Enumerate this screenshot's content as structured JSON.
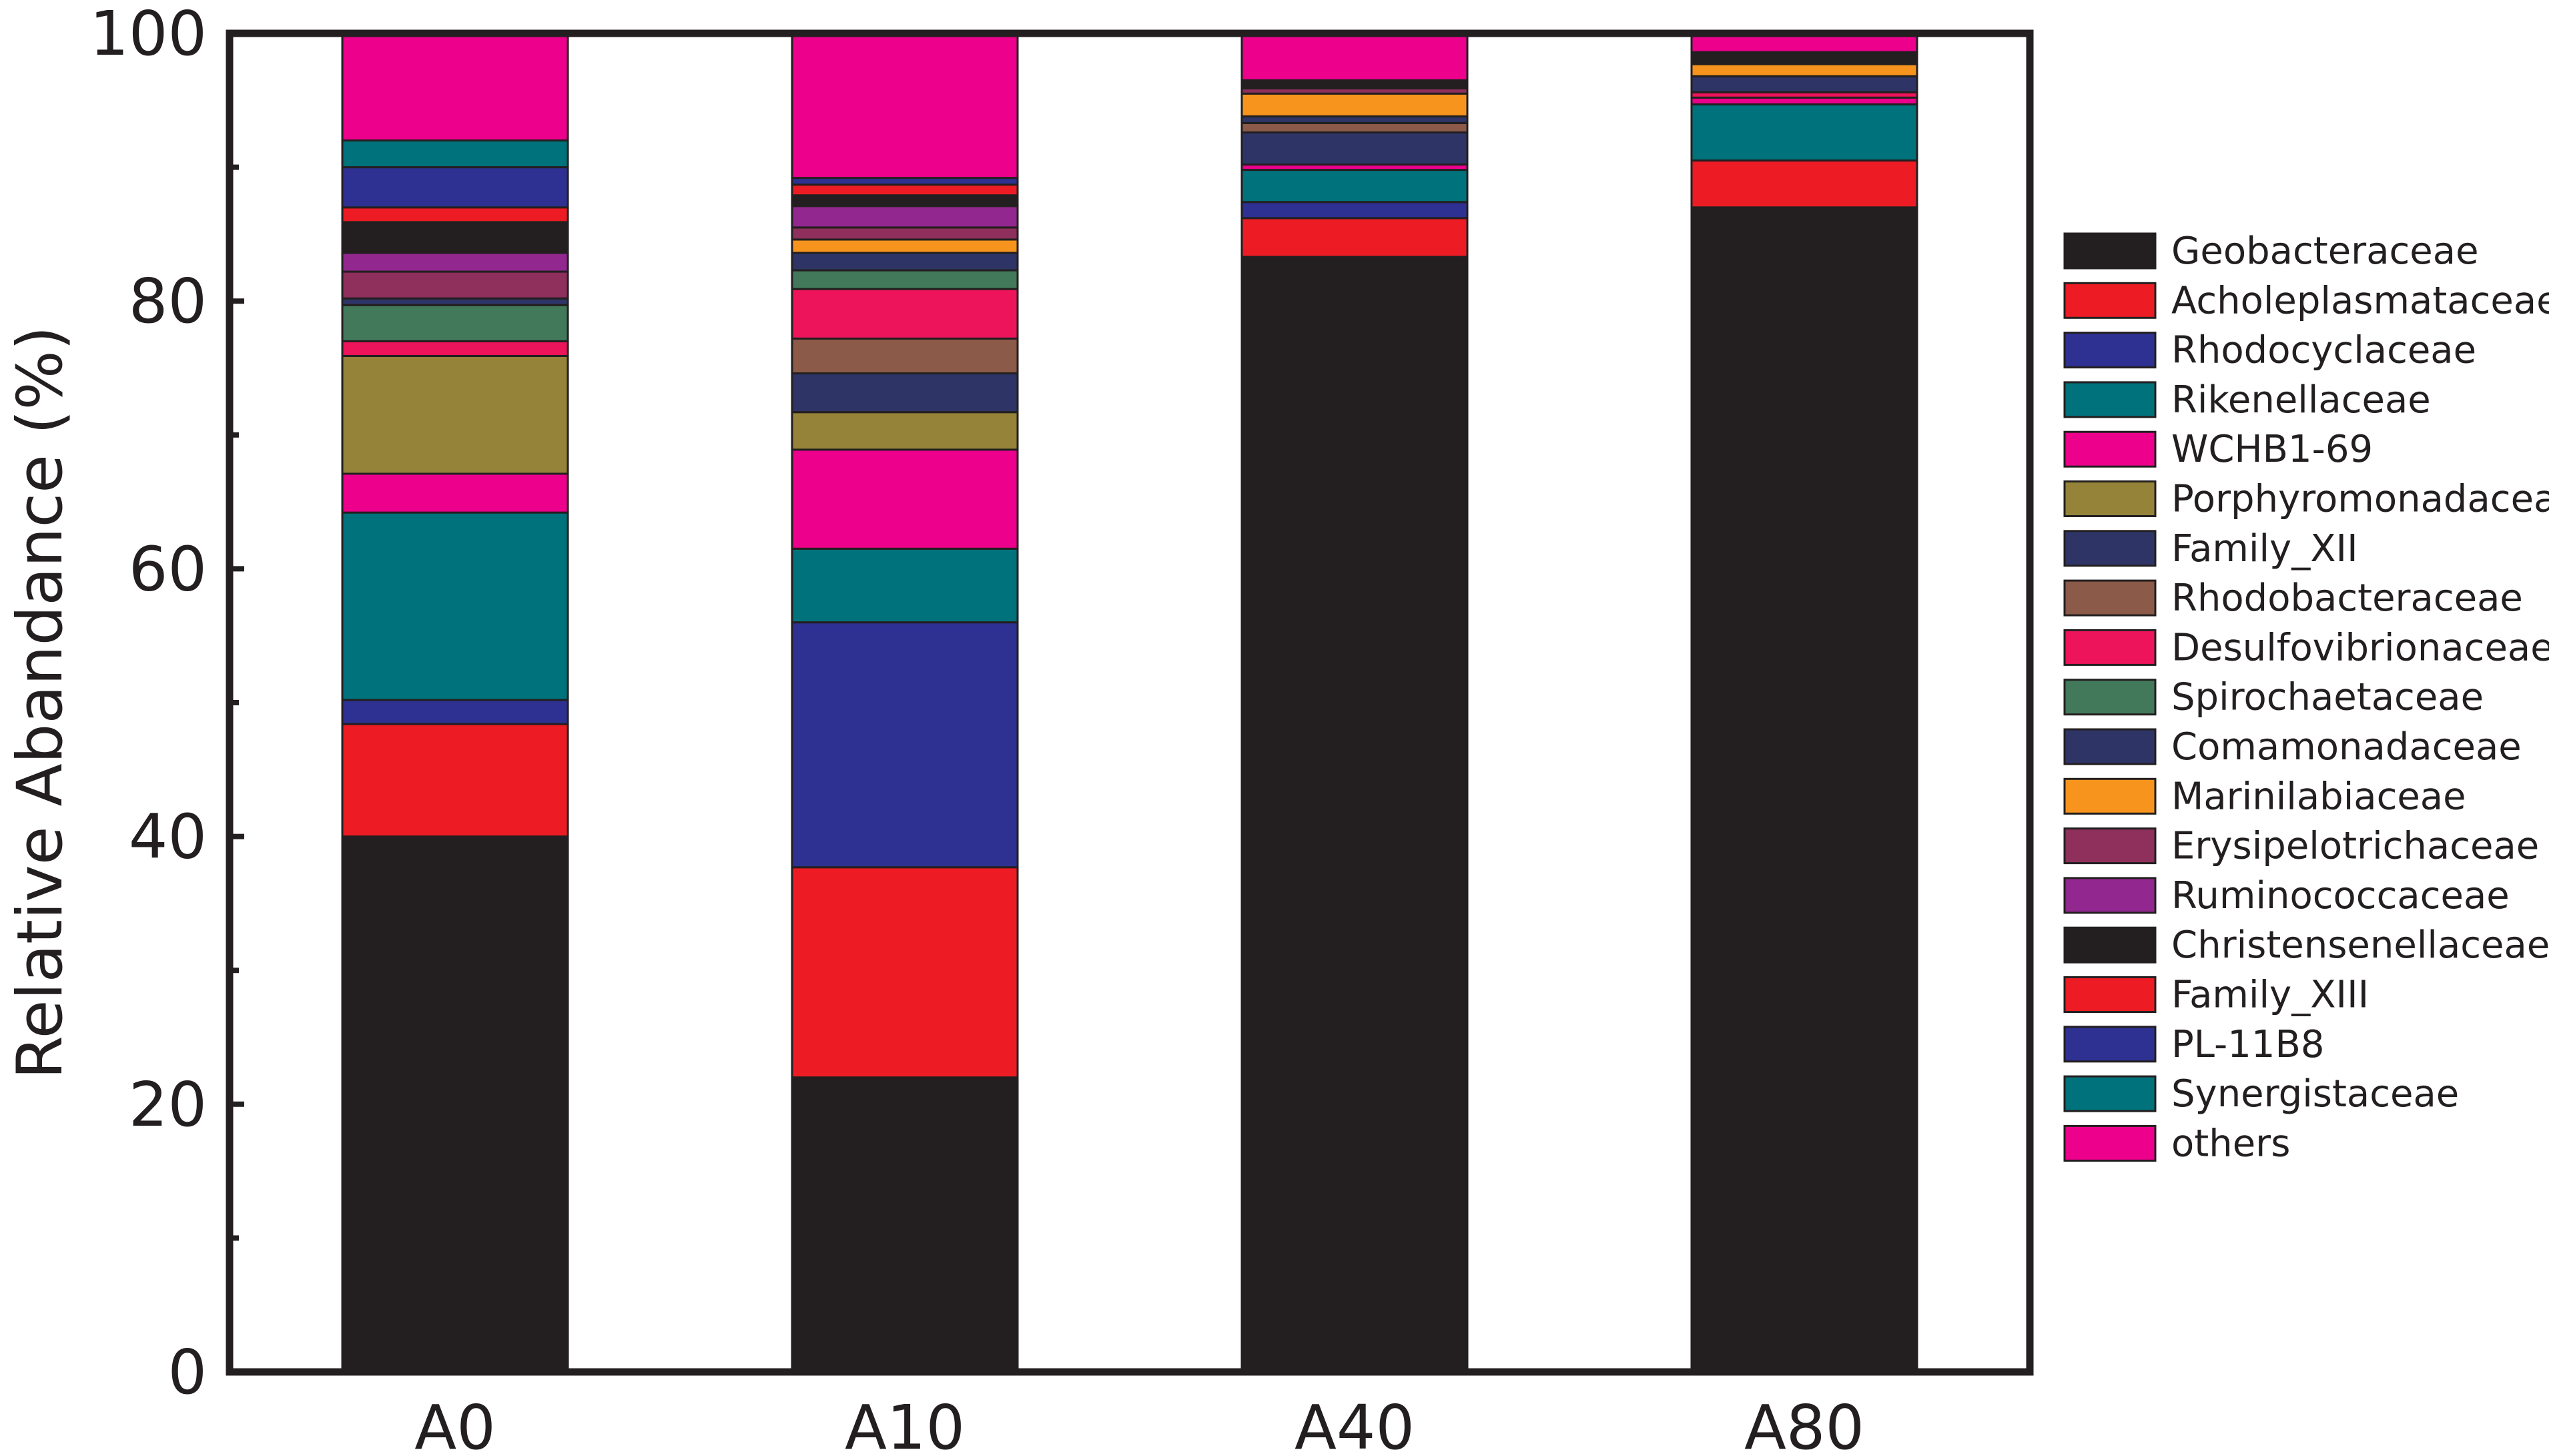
{
  "chart_data": {
    "type": "bar",
    "stacked": true,
    "title": "",
    "xlabel": "",
    "ylabel": "Relative Abandance (%)",
    "ylim": [
      0,
      100
    ],
    "yticks": [
      0,
      20,
      40,
      60,
      80,
      100
    ],
    "categories": [
      "A0",
      "A10",
      "A40",
      "A80"
    ],
    "legend_position": "right",
    "series": [
      {
        "name": "Geobacteraceae",
        "color": "#231f20",
        "values": [
          40.0,
          22.0,
          83.3,
          87.0
        ]
      },
      {
        "name": "Acholeplasmataceae",
        "color": "#ed1c24",
        "values": [
          8.4,
          15.7,
          2.9,
          3.5
        ]
      },
      {
        "name": "Rhodocyclaceae",
        "color": "#2e3192",
        "values": [
          1.8,
          18.3,
          1.2,
          0.0
        ]
      },
      {
        "name": "Rikenellaceae",
        "color": "#00727b",
        "values": [
          14.0,
          5.5,
          2.4,
          4.2
        ]
      },
      {
        "name": "WCHB1-69",
        "color": "#ec008c",
        "values": [
          2.9,
          7.4,
          0.4,
          0.5
        ]
      },
      {
        "name": "Porphyromonadaceae",
        "color": "#948339",
        "values": [
          8.8,
          2.8,
          0.0,
          0.0
        ]
      },
      {
        "name": "Family_XII",
        "color": "#2e3566",
        "values": [
          0.0,
          2.9,
          2.4,
          0.0
        ]
      },
      {
        "name": "Rhodobacteraceae",
        "color": "#8c5a48",
        "values": [
          0.0,
          2.6,
          0.7,
          0.0
        ]
      },
      {
        "name": "Desulfovibrionaceae",
        "color": "#ee145b",
        "values": [
          1.1,
          3.7,
          0.0,
          0.4
        ]
      },
      {
        "name": "Spirochaetaceae",
        "color": "#42795a",
        "values": [
          2.7,
          1.4,
          0.0,
          0.0
        ]
      },
      {
        "name": "Comamonadaceae",
        "color": "#2e3566",
        "values": [
          0.5,
          1.3,
          0.5,
          1.2
        ]
      },
      {
        "name": "Marinilabiaceae",
        "color": "#f7941d",
        "values": [
          0.0,
          1.0,
          1.7,
          0.9
        ]
      },
      {
        "name": "Erysipelotrichaceae",
        "color": "#8e2f5c",
        "values": [
          2.0,
          0.9,
          0.4,
          0.0
        ]
      },
      {
        "name": "Ruminococcaceae",
        "color": "#92278f",
        "values": [
          1.4,
          1.6,
          0.0,
          0.0
        ]
      },
      {
        "name": "Christensenellaceae",
        "color": "#231f20",
        "values": [
          2.3,
          0.8,
          0.6,
          0.9
        ]
      },
      {
        "name": "Family_XIII",
        "color": "#ed1c24",
        "values": [
          1.1,
          0.8,
          0.0,
          0.0
        ]
      },
      {
        "name": "PL-11B8",
        "color": "#2e3192",
        "values": [
          3.0,
          0.5,
          0.0,
          0.0
        ]
      },
      {
        "name": "Synergistaceae",
        "color": "#00727b",
        "values": [
          2.0,
          0.0,
          0.0,
          0.0
        ]
      },
      {
        "name": "others",
        "color": "#ec008c",
        "values": [
          8.0,
          10.8,
          3.5,
          1.4
        ]
      }
    ]
  }
}
